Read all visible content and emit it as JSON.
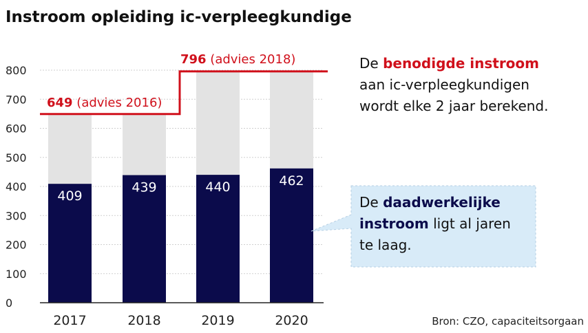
{
  "colors": {
    "actual": "#0b0b4b",
    "advice": "#e3e3e3",
    "advice_line": "#d0101b",
    "callout_bg": "#d8ebf8",
    "grid": "#cfcfcf"
  },
  "chart_data": {
    "type": "bar",
    "title": "Instroom opleiding ic-verpleegkundige",
    "categories": [
      "2017",
      "2018",
      "2019",
      "2020"
    ],
    "series": [
      {
        "name": "daadwerkelijke instroom",
        "values": [
          409,
          439,
          440,
          462
        ]
      },
      {
        "name": "benodigde instroom",
        "values": [
          649,
          649,
          796,
          796
        ]
      }
    ],
    "value_labels": [
      "409",
      "439",
      "440",
      "462"
    ],
    "ylim": [
      0,
      800
    ],
    "yticks": [
      0,
      100,
      200,
      300,
      400,
      500,
      600,
      700,
      800
    ],
    "ytick_labels": [
      "0",
      "100",
      "200",
      "300",
      "400",
      "500",
      "600",
      "700",
      "800"
    ],
    "grid": true,
    "annotations": {
      "advice_2016": {
        "value": "649",
        "text": " (advies 2016)"
      },
      "advice_2018": {
        "value": "796",
        "text": " (advies 2018)"
      }
    }
  },
  "note_top": {
    "line1_pre": "De ",
    "line1_bold": "benodigde instroom",
    "line2": "aan ic-verpleegkundigen",
    "line3": "wordt elke 2 jaar berekend."
  },
  "callout": {
    "line1_pre": "De ",
    "line1_bold": "daadwerkelijke",
    "line2_bold": "instroom",
    "line2_rest": " ligt al jaren",
    "line3": "te laag."
  },
  "source": "Bron: CZO, capaciteitsorgaan"
}
